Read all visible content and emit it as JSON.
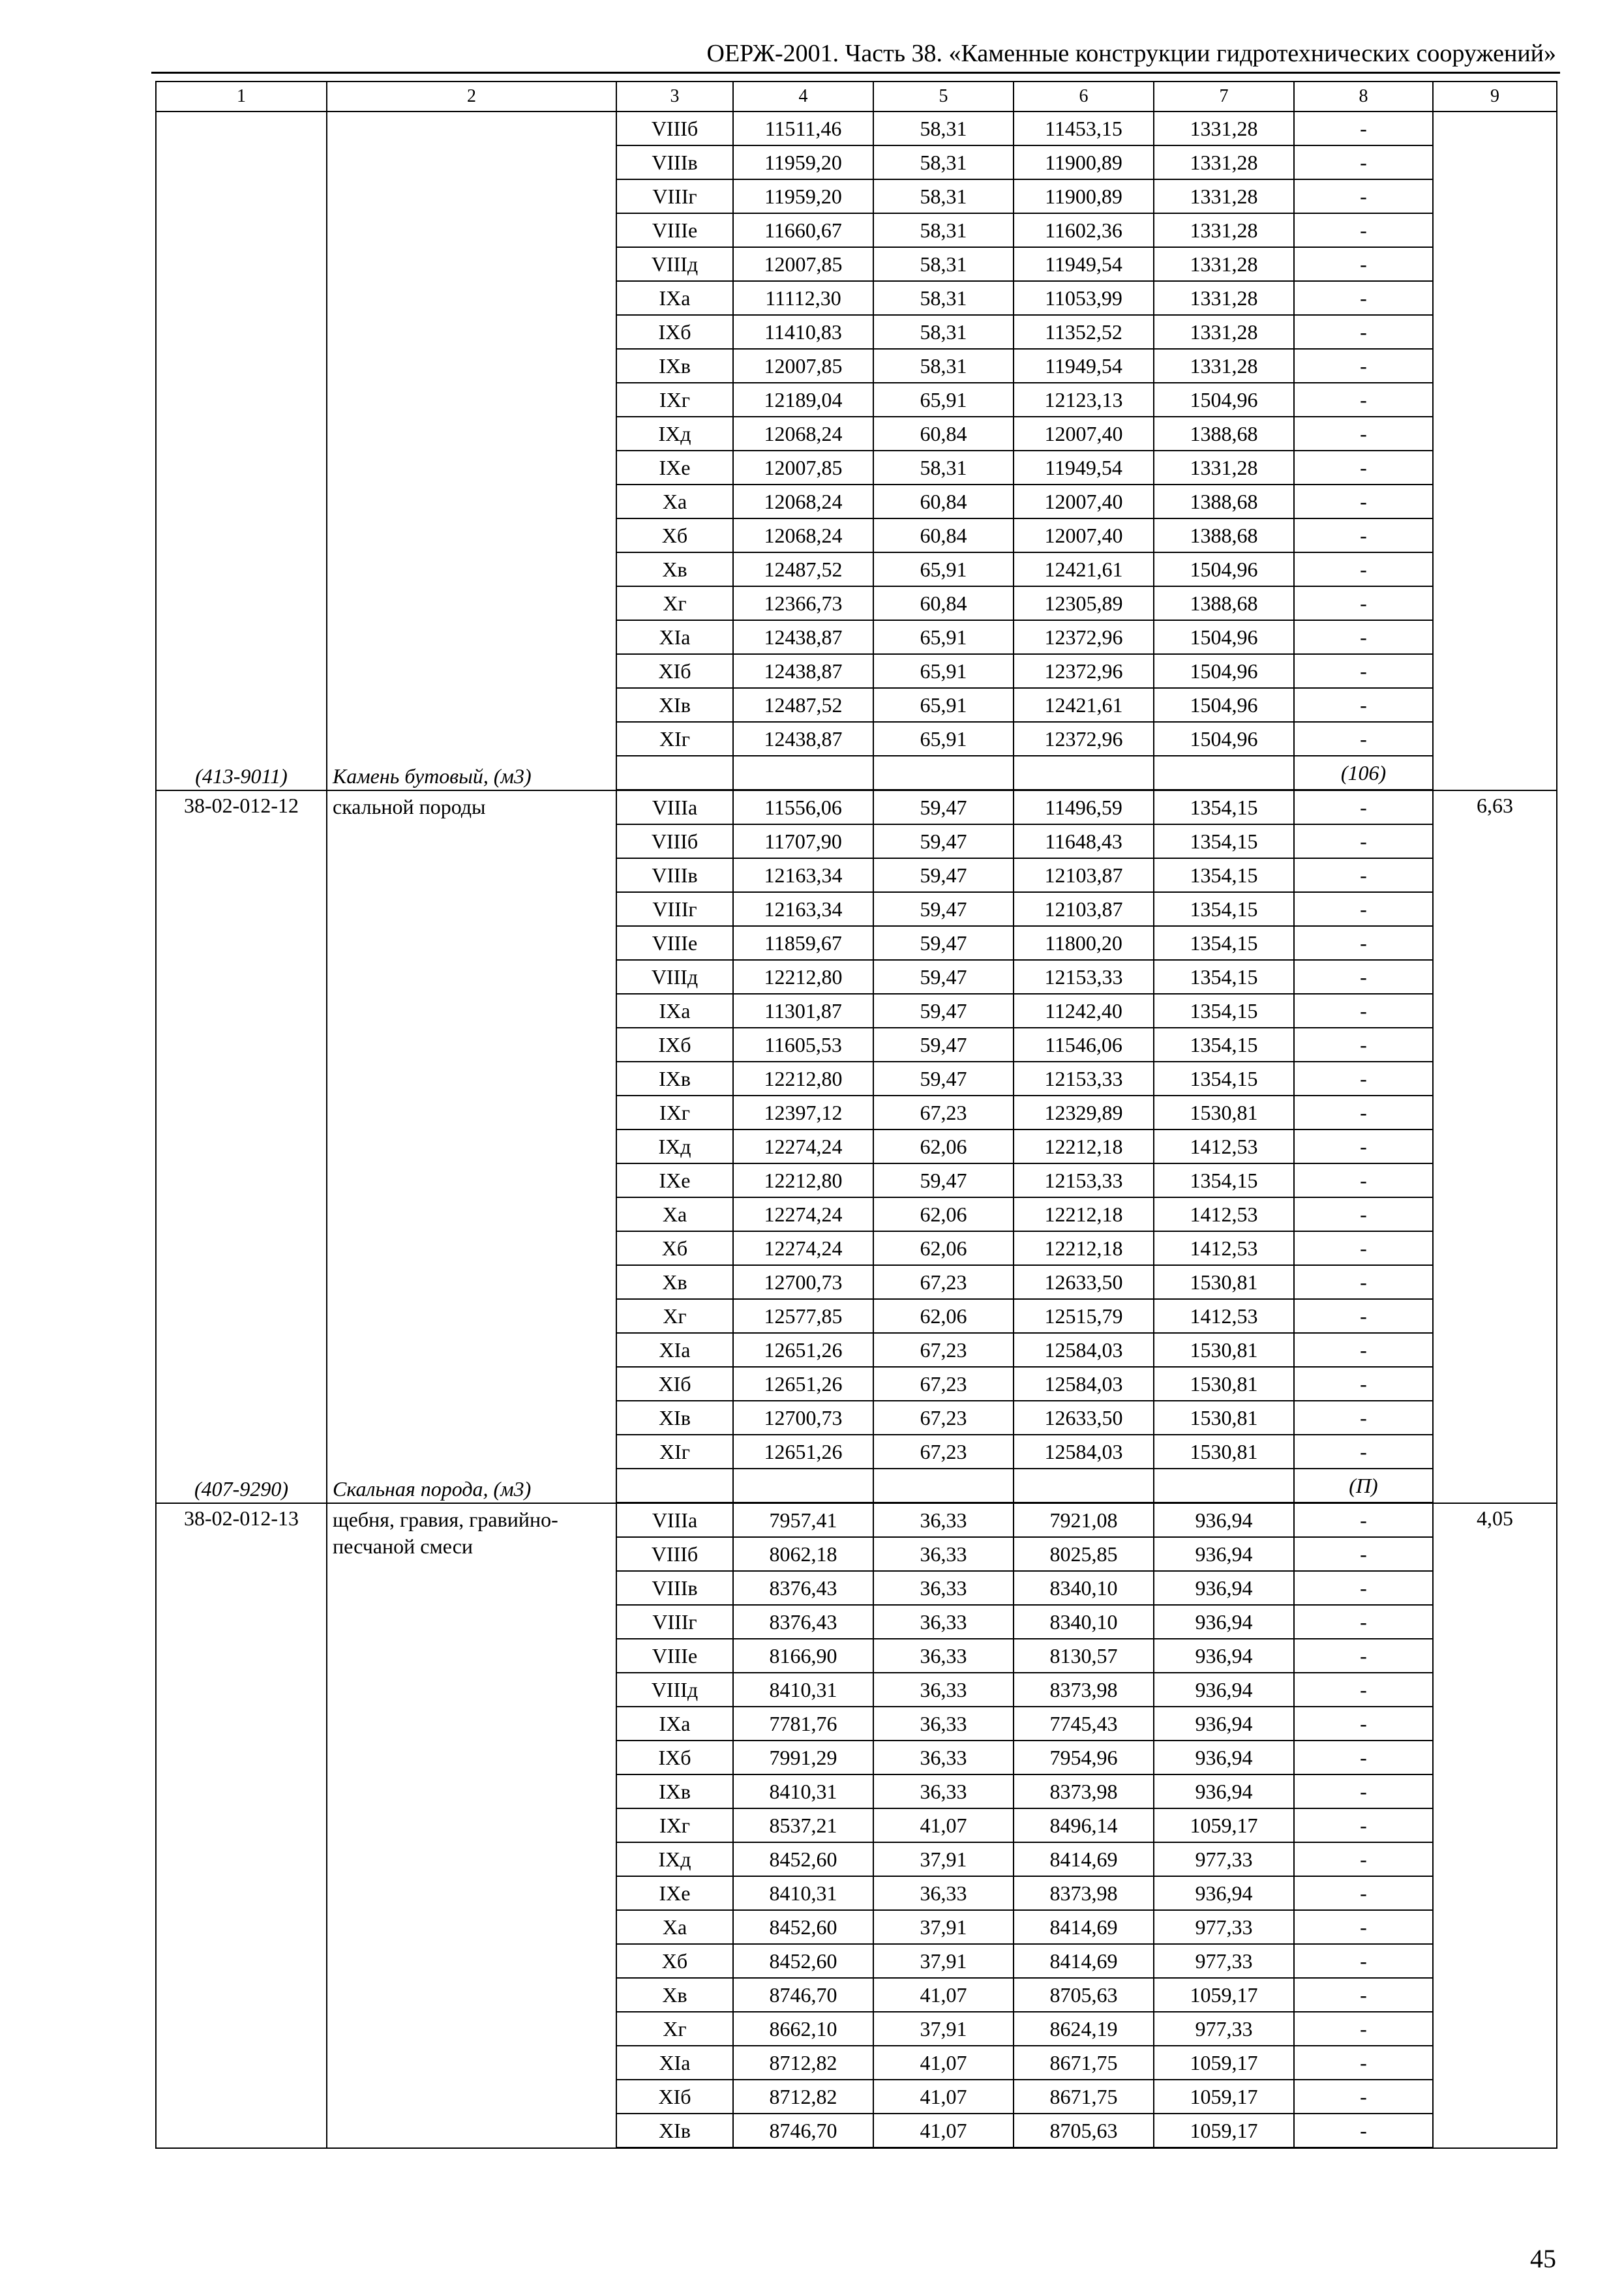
{
  "header": {
    "title": "ОЕРЖ-2001. Часть 38. «Каменные конструкции гидротехнических сооружений»"
  },
  "table": {
    "columns": [
      "1",
      "2",
      "3",
      "4",
      "5",
      "6",
      "7",
      "8",
      "9"
    ],
    "blocks": [
      {
        "code": "",
        "name": "",
        "col9": "",
        "resource_code": "(413-9011)",
        "resource_name": "Камень бутовый, (м3)",
        "resource_qty": "(106)",
        "rows": [
          [
            "VIIIб",
            "11511,46",
            "58,31",
            "11453,15",
            "1331,28",
            "-"
          ],
          [
            "VIIIв",
            "11959,20",
            "58,31",
            "11900,89",
            "1331,28",
            "-"
          ],
          [
            "VIIIг",
            "11959,20",
            "58,31",
            "11900,89",
            "1331,28",
            "-"
          ],
          [
            "VIIIе",
            "11660,67",
            "58,31",
            "11602,36",
            "1331,28",
            "-"
          ],
          [
            "VIIIд",
            "12007,85",
            "58,31",
            "11949,54",
            "1331,28",
            "-"
          ],
          [
            "IXа",
            "11112,30",
            "58,31",
            "11053,99",
            "1331,28",
            "-"
          ],
          [
            "IXб",
            "11410,83",
            "58,31",
            "11352,52",
            "1331,28",
            "-"
          ],
          [
            "IXв",
            "12007,85",
            "58,31",
            "11949,54",
            "1331,28",
            "-"
          ],
          [
            "IXг",
            "12189,04",
            "65,91",
            "12123,13",
            "1504,96",
            "-"
          ],
          [
            "IXд",
            "12068,24",
            "60,84",
            "12007,40",
            "1388,68",
            "-"
          ],
          [
            "IXе",
            "12007,85",
            "58,31",
            "11949,54",
            "1331,28",
            "-"
          ],
          [
            "Xа",
            "12068,24",
            "60,84",
            "12007,40",
            "1388,68",
            "-"
          ],
          [
            "Xб",
            "12068,24",
            "60,84",
            "12007,40",
            "1388,68",
            "-"
          ],
          [
            "Xв",
            "12487,52",
            "65,91",
            "12421,61",
            "1504,96",
            "-"
          ],
          [
            "Xг",
            "12366,73",
            "60,84",
            "12305,89",
            "1388,68",
            "-"
          ],
          [
            "XIа",
            "12438,87",
            "65,91",
            "12372,96",
            "1504,96",
            "-"
          ],
          [
            "XIб",
            "12438,87",
            "65,91",
            "12372,96",
            "1504,96",
            "-"
          ],
          [
            "XIв",
            "12487,52",
            "65,91",
            "12421,61",
            "1504,96",
            "-"
          ],
          [
            "XIг",
            "12438,87",
            "65,91",
            "12372,96",
            "1504,96",
            "-"
          ]
        ]
      },
      {
        "code": "38-02-012-12",
        "name": "скальной породы",
        "col9": "6,63",
        "resource_code": "(407-9290)",
        "resource_name": "Скальная порода, (м3)",
        "resource_qty": "(П)",
        "rows": [
          [
            "VIIIа",
            "11556,06",
            "59,47",
            "11496,59",
            "1354,15",
            "-"
          ],
          [
            "VIIIб",
            "11707,90",
            "59,47",
            "11648,43",
            "1354,15",
            "-"
          ],
          [
            "VIIIв",
            "12163,34",
            "59,47",
            "12103,87",
            "1354,15",
            "-"
          ],
          [
            "VIIIг",
            "12163,34",
            "59,47",
            "12103,87",
            "1354,15",
            "-"
          ],
          [
            "VIIIе",
            "11859,67",
            "59,47",
            "11800,20",
            "1354,15",
            "-"
          ],
          [
            "VIIIд",
            "12212,80",
            "59,47",
            "12153,33",
            "1354,15",
            "-"
          ],
          [
            "IXа",
            "11301,87",
            "59,47",
            "11242,40",
            "1354,15",
            "-"
          ],
          [
            "IXб",
            "11605,53",
            "59,47",
            "11546,06",
            "1354,15",
            "-"
          ],
          [
            "IXв",
            "12212,80",
            "59,47",
            "12153,33",
            "1354,15",
            "-"
          ],
          [
            "IXг",
            "12397,12",
            "67,23",
            "12329,89",
            "1530,81",
            "-"
          ],
          [
            "IXд",
            "12274,24",
            "62,06",
            "12212,18",
            "1412,53",
            "-"
          ],
          [
            "IXе",
            "12212,80",
            "59,47",
            "12153,33",
            "1354,15",
            "-"
          ],
          [
            "Xа",
            "12274,24",
            "62,06",
            "12212,18",
            "1412,53",
            "-"
          ],
          [
            "Xб",
            "12274,24",
            "62,06",
            "12212,18",
            "1412,53",
            "-"
          ],
          [
            "Xв",
            "12700,73",
            "67,23",
            "12633,50",
            "1530,81",
            "-"
          ],
          [
            "Xг",
            "12577,85",
            "62,06",
            "12515,79",
            "1412,53",
            "-"
          ],
          [
            "XIа",
            "12651,26",
            "67,23",
            "12584,03",
            "1530,81",
            "-"
          ],
          [
            "XIб",
            "12651,26",
            "67,23",
            "12584,03",
            "1530,81",
            "-"
          ],
          [
            "XIв",
            "12700,73",
            "67,23",
            "12633,50",
            "1530,81",
            "-"
          ],
          [
            "XIг",
            "12651,26",
            "67,23",
            "12584,03",
            "1530,81",
            "-"
          ]
        ]
      },
      {
        "code": "38-02-012-13",
        "name": "щебня, гравия, гравийно-песчаной смеси",
        "col9": "4,05",
        "rows": [
          [
            "VIIIа",
            "7957,41",
            "36,33",
            "7921,08",
            "936,94",
            "-"
          ],
          [
            "VIIIб",
            "8062,18",
            "36,33",
            "8025,85",
            "936,94",
            "-"
          ],
          [
            "VIIIв",
            "8376,43",
            "36,33",
            "8340,10",
            "936,94",
            "-"
          ],
          [
            "VIIIг",
            "8376,43",
            "36,33",
            "8340,10",
            "936,94",
            "-"
          ],
          [
            "VIIIе",
            "8166,90",
            "36,33",
            "8130,57",
            "936,94",
            "-"
          ],
          [
            "VIIIд",
            "8410,31",
            "36,33",
            "8373,98",
            "936,94",
            "-"
          ],
          [
            "IXа",
            "7781,76",
            "36,33",
            "7745,43",
            "936,94",
            "-"
          ],
          [
            "IXб",
            "7991,29",
            "36,33",
            "7954,96",
            "936,94",
            "-"
          ],
          [
            "IXв",
            "8410,31",
            "36,33",
            "8373,98",
            "936,94",
            "-"
          ],
          [
            "IXг",
            "8537,21",
            "41,07",
            "8496,14",
            "1059,17",
            "-"
          ],
          [
            "IXд",
            "8452,60",
            "37,91",
            "8414,69",
            "977,33",
            "-"
          ],
          [
            "IXе",
            "8410,31",
            "36,33",
            "8373,98",
            "936,94",
            "-"
          ],
          [
            "Xа",
            "8452,60",
            "37,91",
            "8414,69",
            "977,33",
            "-"
          ],
          [
            "Xб",
            "8452,60",
            "37,91",
            "8414,69",
            "977,33",
            "-"
          ],
          [
            "Xв",
            "8746,70",
            "41,07",
            "8705,63",
            "1059,17",
            "-"
          ],
          [
            "Xг",
            "8662,10",
            "37,91",
            "8624,19",
            "977,33",
            "-"
          ],
          [
            "XIа",
            "8712,82",
            "41,07",
            "8671,75",
            "1059,17",
            "-"
          ],
          [
            "XIб",
            "8712,82",
            "41,07",
            "8671,75",
            "1059,17",
            "-"
          ],
          [
            "XIв",
            "8746,70",
            "41,07",
            "8705,63",
            "1059,17",
            "-"
          ]
        ]
      }
    ]
  },
  "footer": {
    "page_number": "45"
  }
}
